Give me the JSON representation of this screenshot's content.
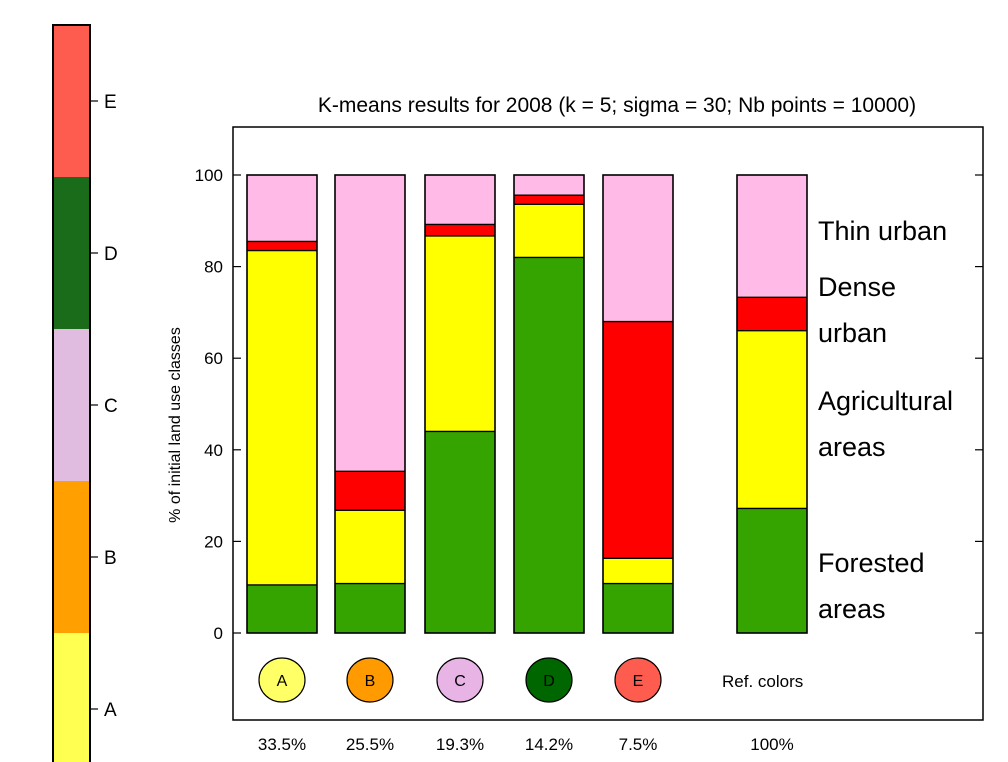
{
  "chart_data": [
    {
      "type": "bar",
      "stacked": true,
      "title": "K-means results for 2008 (k = 5; sigma = 30; Nb points = 10000)",
      "xlabel": "",
      "ylabel": "% of initial land use classes",
      "ylim": [
        -20,
        110
      ],
      "yticks": [
        0,
        20,
        40,
        60,
        80,
        100
      ],
      "grid": false,
      "categories": [
        "33.5%",
        "25.5%",
        "19.3%",
        "14.2%",
        "7.5%",
        "100%"
      ],
      "series": [
        {
          "name": "Forested areas",
          "color": "#35a300",
          "values": [
            10.5,
            10.8,
            44.0,
            82.0,
            10.8,
            27.2
          ]
        },
        {
          "name": "Agricultural areas",
          "color": "#ffff00",
          "values": [
            73.0,
            16.0,
            42.7,
            11.6,
            5.5,
            38.8
          ]
        },
        {
          "name": "Dense urban",
          "color": "#ff0000",
          "values": [
            2.0,
            8.5,
            2.5,
            2.0,
            51.7,
            7.3
          ]
        },
        {
          "name": "Thin urban",
          "color": "#ffbae8",
          "values": [
            14.5,
            64.7,
            10.8,
            4.4,
            32.0,
            26.7
          ]
        }
      ],
      "ref_colors": {
        "label": "Ref. colors",
        "items": [
          {
            "label": "A",
            "color": "#ffff66"
          },
          {
            "label": "B",
            "color": "#ff9a00"
          },
          {
            "label": "C",
            "color": "#e8b4e6"
          },
          {
            "label": "D",
            "color": "#006600"
          },
          {
            "label": "E",
            "color": "#ff5c50"
          }
        ]
      },
      "legend_labels": [
        {
          "text": [
            "Thin urban"
          ]
        },
        {
          "text": [
            "Dense",
            "urban"
          ]
        },
        {
          "text": [
            "Agricultural",
            "areas"
          ]
        },
        {
          "text": [
            "Forested",
            "areas"
          ]
        }
      ]
    },
    {
      "type": "colorbar",
      "segments": [
        {
          "label": "E",
          "color": "#ff5c50"
        },
        {
          "label": "D",
          "color": "#1a6b1a"
        },
        {
          "label": "C",
          "color": "#e0bde0"
        },
        {
          "label": "B",
          "color": "#ffa000"
        },
        {
          "label": "A",
          "color": "#ffff52"
        }
      ]
    }
  ]
}
